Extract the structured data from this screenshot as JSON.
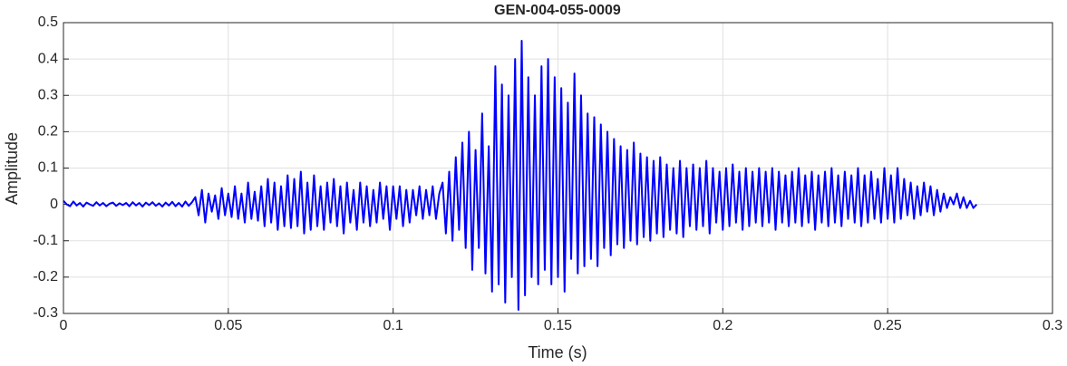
{
  "chart_data": {
    "type": "line",
    "title": "GEN-004-055-0009",
    "x_label": "Time (s)",
    "y_label": "Amplitude",
    "color": "#0000ff",
    "grid": true,
    "xlim": [
      0,
      0.3
    ],
    "ylim": [
      -0.3,
      0.5
    ],
    "xticks": [
      0,
      0.05,
      0.1,
      0.15,
      0.2,
      0.25,
      0.3
    ],
    "yticks": [
      -0.3,
      -0.2,
      -0.1,
      0,
      0.1,
      0.2,
      0.3,
      0.4,
      0.5
    ],
    "x": [
      0,
      0.001,
      0.002,
      0.003,
      0.004,
      0.005,
      0.006,
      0.007,
      0.008,
      0.009,
      0.01,
      0.011,
      0.012,
      0.013,
      0.014,
      0.015,
      0.016,
      0.017,
      0.018,
      0.019,
      0.02,
      0.021,
      0.022,
      0.023,
      0.024,
      0.025,
      0.026,
      0.027,
      0.028,
      0.029,
      0.03,
      0.031,
      0.032,
      0.033,
      0.034,
      0.035,
      0.036,
      0.037,
      0.038,
      0.039,
      0.04,
      0.041,
      0.042,
      0.043,
      0.044,
      0.045,
      0.046,
      0.047,
      0.048,
      0.049,
      0.05,
      0.051,
      0.052,
      0.053,
      0.054,
      0.055,
      0.056,
      0.057,
      0.058,
      0.059,
      0.06,
      0.061,
      0.062,
      0.063,
      0.064,
      0.065,
      0.066,
      0.067,
      0.068,
      0.069,
      0.07,
      0.071,
      0.072,
      0.073,
      0.074,
      0.075,
      0.076,
      0.077,
      0.078,
      0.079,
      0.08,
      0.081,
      0.082,
      0.083,
      0.084,
      0.085,
      0.086,
      0.087,
      0.088,
      0.089,
      0.09,
      0.091,
      0.092,
      0.093,
      0.094,
      0.095,
      0.096,
      0.097,
      0.098,
      0.099,
      0.1,
      0.101,
      0.102,
      0.103,
      0.104,
      0.105,
      0.106,
      0.107,
      0.108,
      0.109,
      0.11,
      0.111,
      0.112,
      0.113,
      0.114,
      0.115,
      0.116,
      0.117,
      0.118,
      0.119,
      0.12,
      0.121,
      0.122,
      0.123,
      0.124,
      0.125,
      0.126,
      0.127,
      0.128,
      0.129,
      0.13,
      0.131,
      0.132,
      0.133,
      0.134,
      0.135,
      0.136,
      0.137,
      0.138,
      0.139,
      0.14,
      0.141,
      0.142,
      0.143,
      0.144,
      0.145,
      0.146,
      0.147,
      0.148,
      0.149,
      0.15,
      0.151,
      0.152,
      0.153,
      0.154,
      0.155,
      0.156,
      0.157,
      0.158,
      0.159,
      0.16,
      0.161,
      0.162,
      0.163,
      0.164,
      0.165,
      0.166,
      0.167,
      0.168,
      0.169,
      0.17,
      0.171,
      0.172,
      0.173,
      0.174,
      0.175,
      0.176,
      0.177,
      0.178,
      0.179,
      0.18,
      0.181,
      0.182,
      0.183,
      0.184,
      0.185,
      0.186,
      0.187,
      0.188,
      0.189,
      0.19,
      0.191,
      0.192,
      0.193,
      0.194,
      0.195,
      0.196,
      0.197,
      0.198,
      0.199,
      0.2,
      0.201,
      0.202,
      0.203,
      0.204,
      0.205,
      0.206,
      0.207,
      0.208,
      0.209,
      0.21,
      0.211,
      0.212,
      0.213,
      0.214,
      0.215,
      0.216,
      0.217,
      0.218,
      0.219,
      0.22,
      0.221,
      0.222,
      0.223,
      0.224,
      0.225,
      0.226,
      0.227,
      0.228,
      0.229,
      0.23,
      0.231,
      0.232,
      0.233,
      0.234,
      0.235,
      0.236,
      0.237,
      0.238,
      0.239,
      0.24,
      0.241,
      0.242,
      0.243,
      0.244,
      0.245,
      0.246,
      0.247,
      0.248,
      0.249,
      0.25,
      0.251,
      0.252,
      0.253,
      0.254,
      0.255,
      0.256,
      0.257,
      0.258,
      0.259,
      0.26,
      0.261,
      0.262,
      0.263,
      0.264,
      0.265,
      0.266,
      0.267,
      0.268,
      0.269,
      0.27,
      0.271,
      0.272,
      0.273,
      0.274,
      0.275,
      0.276,
      0.277
    ],
    "values": [
      0.01,
      0,
      -0.005,
      0.008,
      -0.003,
      0.004,
      -0.006,
      0.005,
      0,
      -0.004,
      0.006,
      -0.003,
      0.004,
      -0.005,
      0.002,
      0.005,
      -0.004,
      0.003,
      -0.002,
      0.004,
      -0.005,
      0.006,
      -0.003,
      0.004,
      -0.006,
      0.005,
      -0.002,
      0.006,
      -0.004,
      0.003,
      -0.006,
      0.005,
      -0.003,
      0.007,
      -0.005,
      0.004,
      -0.006,
      0.008,
      -0.004,
      0.006,
      0.02,
      -0.03,
      0.04,
      -0.05,
      0.03,
      -0.02,
      0.025,
      -0.04,
      0.045,
      -0.03,
      0.03,
      -0.035,
      0.05,
      -0.04,
      0.03,
      -0.05,
      0.06,
      -0.04,
      0.035,
      -0.045,
      0.05,
      -0.06,
      0.07,
      -0.05,
      0.06,
      -0.07,
      0.05,
      -0.06,
      0.08,
      -0.065,
      0.07,
      -0.06,
      0.09,
      -0.08,
      0.06,
      -0.07,
      0.08,
      -0.06,
      0.05,
      -0.07,
      0.06,
      -0.05,
      0.07,
      -0.06,
      0.05,
      -0.08,
      0.06,
      -0.05,
      0.04,
      -0.07,
      0.06,
      -0.05,
      0.05,
      -0.06,
      0.04,
      -0.05,
      0.06,
      -0.04,
      0.05,
      -0.07,
      0.05,
      -0.04,
      0.05,
      -0.06,
      0.04,
      -0.05,
      0.04,
      -0.03,
      0.05,
      -0.04,
      0.04,
      -0.03,
      0.05,
      -0.04,
      0.03,
      0.06,
      -0.08,
      0.09,
      -0.1,
      0.13,
      -0.07,
      0.17,
      -0.12,
      0.2,
      -0.18,
      0.15,
      -0.12,
      0.25,
      -0.19,
      0.16,
      -0.24,
      0.38,
      -0.22,
      0.33,
      -0.27,
      0.3,
      -0.2,
      0.4,
      -0.29,
      0.45,
      -0.25,
      0.35,
      -0.2,
      0.3,
      -0.22,
      0.38,
      -0.18,
      0.4,
      -0.22,
      0.35,
      -0.2,
      0.32,
      -0.24,
      0.28,
      -0.15,
      0.36,
      -0.19,
      0.3,
      -0.17,
      0.25,
      -0.15,
      0.24,
      -0.17,
      0.22,
      -0.12,
      0.2,
      -0.14,
      0.18,
      -0.11,
      0.16,
      -0.12,
      0.15,
      -0.1,
      0.17,
      -0.11,
      0.14,
      -0.09,
      0.13,
      -0.1,
      0.12,
      -0.08,
      0.13,
      -0.09,
      0.11,
      -0.07,
      0.1,
      -0.08,
      0.12,
      -0.09,
      0.1,
      -0.06,
      0.11,
      -0.07,
      0.1,
      -0.06,
      0.12,
      -0.08,
      0.1,
      -0.05,
      0.09,
      -0.07,
      0.1,
      -0.06,
      0.11,
      -0.05,
      0.09,
      -0.07,
      0.1,
      -0.06,
      0.09,
      -0.05,
      0.1,
      -0.06,
      0.09,
      -0.05,
      0.1,
      -0.07,
      0.09,
      -0.05,
      0.08,
      -0.06,
      0.09,
      -0.05,
      0.1,
      -0.06,
      0.08,
      -0.05,
      0.09,
      -0.07,
      0.08,
      -0.05,
      0.09,
      -0.06,
      0.1,
      -0.05,
      0.08,
      -0.06,
      0.09,
      -0.04,
      0.08,
      -0.05,
      0.1,
      -0.06,
      0.08,
      -0.05,
      0.09,
      -0.04,
      0.07,
      -0.05,
      0.1,
      -0.04,
      0.08,
      -0.05,
      0.1,
      -0.04,
      0.07,
      -0.03,
      0.06,
      -0.04,
      0.05,
      -0.03,
      0.06,
      -0.02,
      0.05,
      -0.03,
      0.04,
      -0.02,
      0.03,
      -0.01,
      0.02,
      0,
      0.03,
      -0.01,
      0.02,
      -0.01,
      0.01,
      -0.01,
      0
    ]
  }
}
